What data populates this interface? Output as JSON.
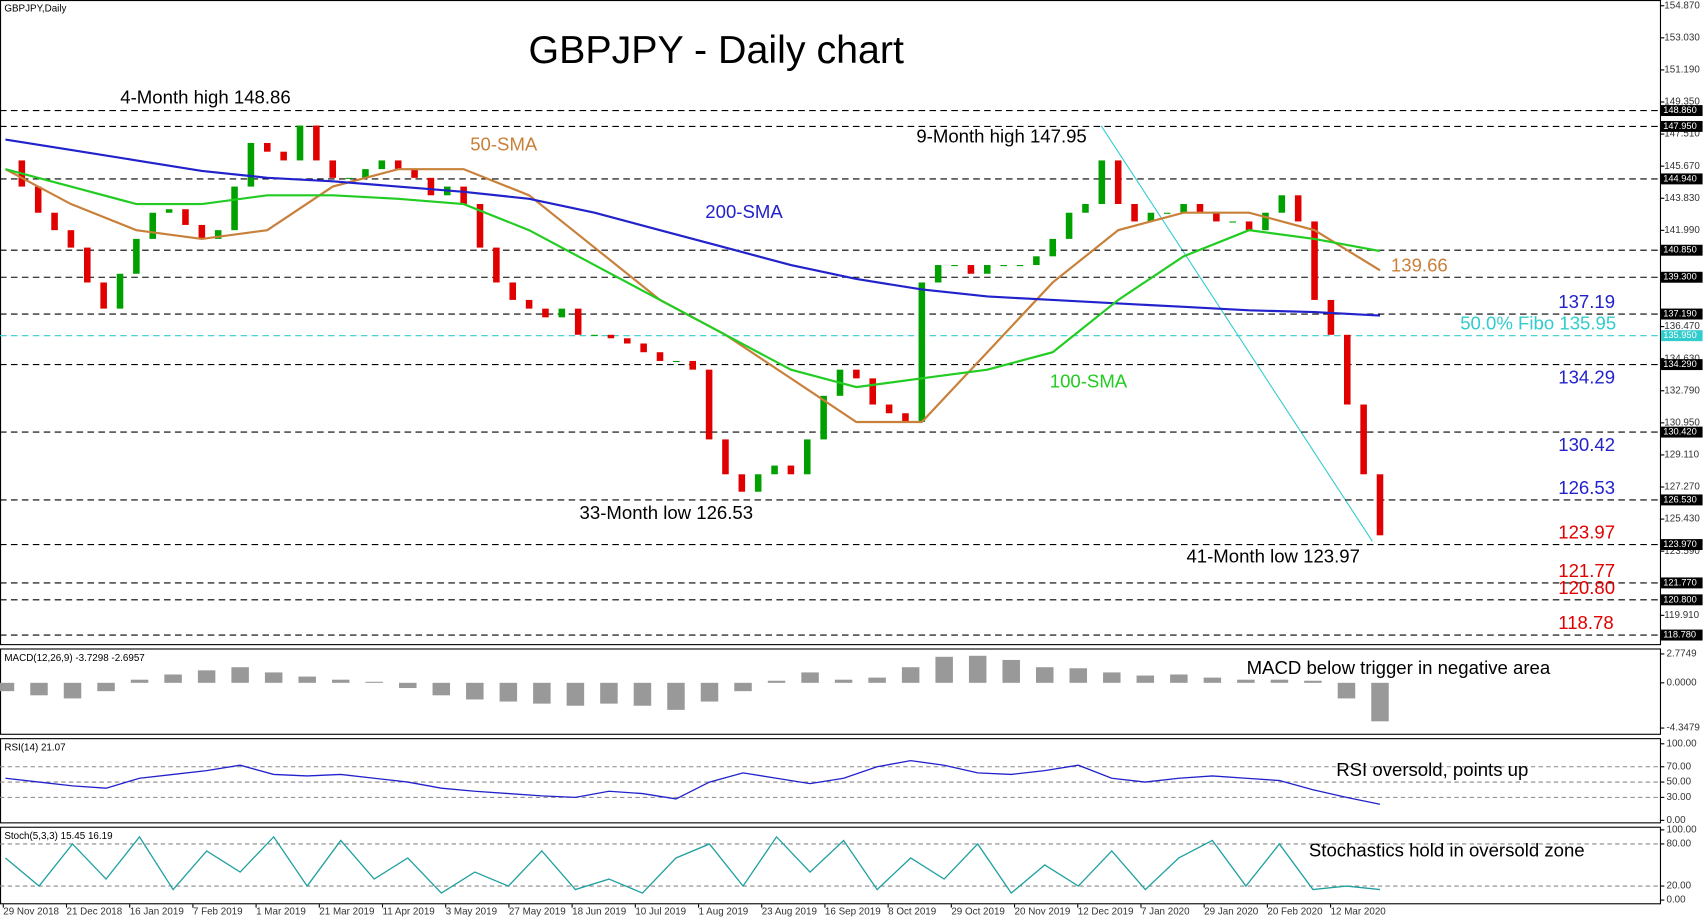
{
  "header": "GBPJPY,Daily",
  "chart_data": [
    {
      "type": "candlestick",
      "title": "GBPJPY - Daily chart",
      "categories": [
        "29 Nov 2018",
        "21 Dec 2018",
        "16 Jan 2019",
        "7 Feb 2019",
        "1 Mar 2019",
        "21 Mar 2019",
        "11 Apr 2019",
        "3 May 2019",
        "27 May 2019",
        "18 Jun 2019",
        "10 Jul 2019",
        "1 Aug 2019",
        "23 Aug 2019",
        "16 Sep 2019",
        "8 Oct 2019",
        "29 Oct 2019",
        "20 Nov 2019",
        "12 Dec 2019",
        "7 Jan 2020",
        "29 Jan 2020",
        "20 Feb 2020",
        "12 Mar 2020"
      ],
      "close": [
        146.0,
        144.5,
        143.0,
        142.0,
        141.0,
        139.0,
        137.5,
        139.5,
        141.5,
        143.0,
        143.2,
        142.3,
        141.5,
        142.0,
        144.5,
        147.0,
        146.5,
        146.0,
        148.0,
        146.0,
        145.0,
        145.0,
        145.5,
        146.0,
        145.5,
        145.0,
        144.0,
        144.5,
        143.5,
        141.0,
        139.0,
        138.0,
        137.5,
        137.0,
        137.5,
        136.0,
        136.0,
        135.8,
        135.5,
        135.0,
        134.5,
        134.5,
        134.0,
        130.0,
        128.0,
        127.0,
        128.0,
        128.5,
        128.0,
        130.0,
        132.5,
        134.0,
        133.5,
        132.0,
        131.5,
        131.0,
        139.0,
        140.0,
        140.0,
        139.5,
        140.0,
        140.0,
        140.0,
        140.5,
        141.5,
        143.0,
        143.5,
        146.0,
        143.5,
        142.5,
        143.0,
        143.0,
        143.5,
        143.0,
        142.5,
        142.5,
        142.0,
        143.0,
        144.0,
        142.5,
        138.0,
        136.0,
        132.0,
        128.0,
        124.5
      ],
      "up_color": "#00a000",
      "down_color": "#e00000",
      "series": [
        {
          "name": "50-SMA",
          "color": "#c8803a",
          "values": [
            145.5,
            143.5,
            142.0,
            141.5,
            142.0,
            144.5,
            145.5,
            145.5,
            144.0,
            141.0,
            138.0,
            136.0,
            133.5,
            131.0,
            131.0,
            135.0,
            139.0,
            142.0,
            143.0,
            143.0,
            142.0,
            139.7
          ]
        },
        {
          "name": "200-SMA",
          "color": "#2222cc",
          "values": [
            147.2,
            146.6,
            146.0,
            145.4,
            145.0,
            144.8,
            144.5,
            144.2,
            143.8,
            143.0,
            142.0,
            141.0,
            140.0,
            139.2,
            138.6,
            138.2,
            138.0,
            137.8,
            137.6,
            137.4,
            137.3,
            137.1
          ]
        },
        {
          "name": "100-SMA",
          "color": "#22cc22",
          "values": [
            145.5,
            144.5,
            143.5,
            143.5,
            144.0,
            144.0,
            143.8,
            143.5,
            142.0,
            140.0,
            138.0,
            136.0,
            134.0,
            133.0,
            133.5,
            134.0,
            135.0,
            138.0,
            140.5,
            142.0,
            141.5,
            140.8
          ]
        }
      ],
      "ylim": [
        118.2,
        155.2
      ],
      "yticks": [
        {
          "value": 154.87,
          "label": "154.870"
        },
        {
          "value": 153.03,
          "label": "153.030"
        },
        {
          "value": 151.19,
          "label": "151.190"
        },
        {
          "value": 149.35,
          "label": "149.350"
        },
        {
          "value": 147.51,
          "label": "147.510"
        },
        {
          "value": 145.67,
          "label": "145.670"
        },
        {
          "value": 143.83,
          "label": "143.830"
        },
        {
          "value": 141.99,
          "label": "141.990"
        },
        {
          "value": 136.47,
          "label": "136.470"
        },
        {
          "value": 134.63,
          "label": "134.630"
        },
        {
          "value": 132.79,
          "label": "132.790"
        },
        {
          "value": 130.95,
          "label": "130.950"
        },
        {
          "value": 129.11,
          "label": "129.110"
        },
        {
          "value": 127.27,
          "label": "127.270"
        },
        {
          "value": 125.43,
          "label": "125.430"
        },
        {
          "value": 123.59,
          "label": "123.590"
        },
        {
          "value": 119.91,
          "label": "119.910"
        }
      ],
      "levels": [
        {
          "value": 148.86,
          "label": "148.860",
          "color": "#000000"
        },
        {
          "value": 147.95,
          "label": "147.950",
          "color": "#000000"
        },
        {
          "value": 144.94,
          "label": "144.940",
          "color": "#000000"
        },
        {
          "value": 140.85,
          "label": "140.850",
          "color": "#000000"
        },
        {
          "value": 139.3,
          "label": "139.300",
          "color": "#000000"
        },
        {
          "value": 137.19,
          "label": "137.190",
          "color": "#000000",
          "annotation": "137.19",
          "annotation_color": "#2222cc"
        },
        {
          "value": 135.95,
          "label": "135.950",
          "color": "#33cccc",
          "annotation": "50.0% Fibo 135.95",
          "annotation_color": "#33cccc"
        },
        {
          "value": 134.29,
          "label": "134.290",
          "color": "#000000",
          "annotation": "134.29",
          "annotation_color": "#2222cc"
        },
        {
          "value": 130.42,
          "label": "130.420",
          "color": "#000000",
          "annotation": "130.42",
          "annotation_color": "#2222cc"
        },
        {
          "value": 126.53,
          "label": "126.530",
          "color": "#000000",
          "annotation": "126.53",
          "annotation_color": "#2222cc"
        },
        {
          "value": 123.97,
          "label": "123.970",
          "color": "#000000",
          "annotation": "123.97",
          "annotation_color": "#e00000"
        },
        {
          "value": 121.77,
          "label": "121.770",
          "color": "#000000",
          "annotation": "121.77",
          "annotation_color": "#e00000"
        },
        {
          "value": 120.8,
          "label": "120.800",
          "color": "#000000",
          "annotation": "120.80",
          "annotation_color": "#e00000"
        },
        {
          "value": 118.78,
          "label": "118.780",
          "color": "#000000",
          "annotation": "118.78",
          "annotation_color": "#e00000"
        }
      ],
      "annotations": [
        {
          "text": "4-Month high 148.86",
          "color": "#000000"
        },
        {
          "text": "9-Month high 147.95",
          "color": "#000000"
        },
        {
          "text": "50-SMA",
          "color": "#c8803a"
        },
        {
          "text": "200-SMA",
          "color": "#2222cc"
        },
        {
          "text": "100-SMA",
          "color": "#22cc22"
        },
        {
          "text": "33-Month low 126.53",
          "color": "#000000"
        },
        {
          "text": "41-Month low 123.97",
          "color": "#000000"
        },
        {
          "text": "139.66",
          "color": "#c8803a"
        }
      ]
    },
    {
      "type": "bar",
      "title": "MACD(12,26,9) -3.7298 -2.6957",
      "annotation": "MACD below trigger in negative area",
      "color": "#999999",
      "values": [
        -0.8,
        -1.2,
        -1.5,
        -0.8,
        0.3,
        0.8,
        1.2,
        1.5,
        1.0,
        0.6,
        0.3,
        0.1,
        -0.5,
        -1.2,
        -1.6,
        -1.8,
        -2.0,
        -2.2,
        -2.0,
        -2.2,
        -2.6,
        -1.8,
        -0.8,
        0.2,
        1.0,
        0.3,
        0.5,
        1.5,
        2.5,
        2.6,
        2.2,
        1.5,
        1.4,
        1.0,
        0.7,
        0.8,
        0.5,
        0.3,
        0.3,
        0.2,
        -1.5,
        -3.7
      ],
      "ylim": [
        -5.0,
        3.2
      ],
      "yticks": [
        {
          "value": 2.7749,
          "label": "2.7749"
        },
        {
          "value": 0,
          "label": "0.0000"
        },
        {
          "value": -4.3479,
          "label": "-4.3479"
        }
      ]
    },
    {
      "type": "line",
      "title": "RSI(14) 21.07",
      "annotation": "RSI oversold, points up",
      "color": "#2222cc",
      "values": [
        55,
        50,
        45,
        42,
        55,
        60,
        65,
        72,
        60,
        58,
        60,
        55,
        50,
        42,
        38,
        35,
        32,
        30,
        38,
        35,
        28,
        50,
        62,
        55,
        48,
        55,
        70,
        78,
        72,
        62,
        60,
        65,
        72,
        55,
        50,
        55,
        58,
        55,
        52,
        40,
        30,
        21
      ],
      "ylim": [
        -4,
        106
      ],
      "yticks": [
        {
          "value": 100,
          "label": "100.00"
        },
        {
          "value": 70,
          "label": "70.00"
        },
        {
          "value": 50,
          "label": "50.00"
        },
        {
          "value": 30,
          "label": "30.00"
        },
        {
          "value": 0,
          "label": "0.00"
        }
      ]
    },
    {
      "type": "line",
      "title": "Stoch(5,3,3) 15.45 16.19",
      "annotation": "Stochastics hold in oversold zone",
      "color": "#20a0a0",
      "values": [
        60,
        20,
        80,
        30,
        90,
        15,
        70,
        40,
        90,
        20,
        85,
        30,
        60,
        10,
        40,
        20,
        70,
        15,
        30,
        10,
        60,
        80,
        20,
        90,
        40,
        85,
        15,
        60,
        30,
        80,
        10,
        50,
        20,
        70,
        15,
        60,
        85,
        20,
        80,
        15,
        20,
        15
      ],
      "ylim": [
        -6,
        103
      ],
      "yticks": [
        {
          "value": 100,
          "label": "100.00"
        },
        {
          "value": 80,
          "label": "80.00"
        },
        {
          "value": 20,
          "label": "20.00"
        },
        {
          "value": 0,
          "label": "0.00"
        }
      ]
    }
  ]
}
